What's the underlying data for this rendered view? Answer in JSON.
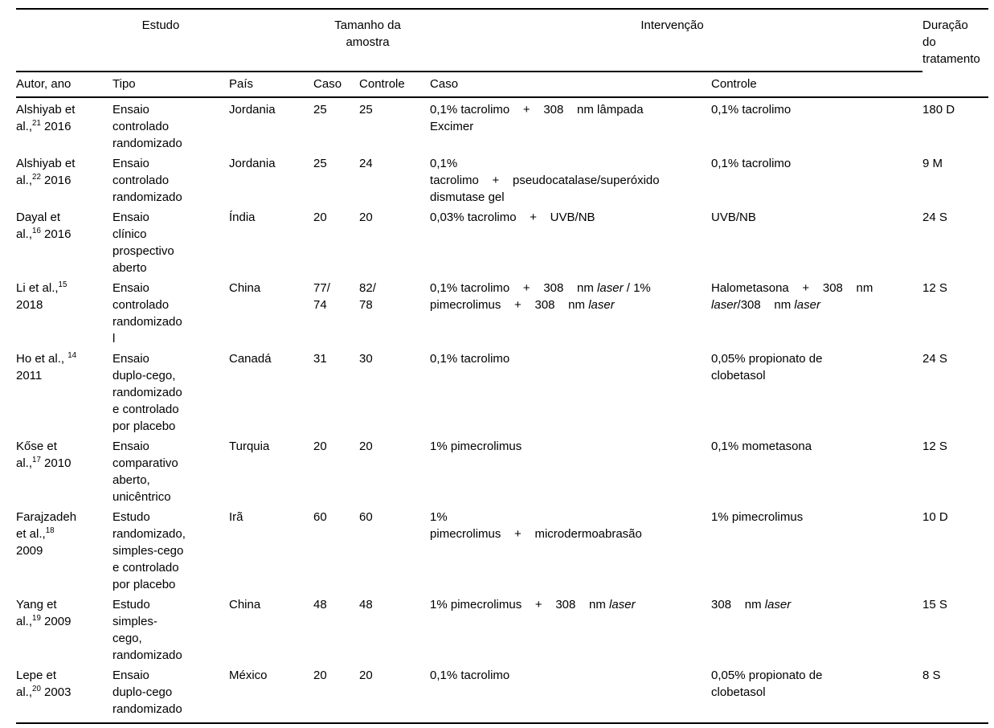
{
  "meta": {
    "background_color": "#ffffff",
    "text_color": "#000000",
    "rule_color": "#000000"
  },
  "table": {
    "groups": {
      "estudo": "Estudo",
      "amostra": "Tamanho da\namostra",
      "intervencao": "Intervenção",
      "duracao": "Duração\ndo\ntratamento"
    },
    "columns": {
      "autor": "Autor, ano",
      "tipo": "Tipo",
      "pais": "País",
      "caso_n": "Caso",
      "controle_n": "Controle",
      "caso_int": "Caso",
      "controle_int": "Controle"
    },
    "rows": [
      {
        "autor": "Alshiyab et\nal.,^21 2016",
        "tipo": "Ensaio\ncontrolado\nrandomizado",
        "pais": "Jordania",
        "caso_n": "25",
        "controle_n": "25",
        "caso_int": "0,1% tacrolimo    +    308    nm lâmpada\nExcimer",
        "controle_int": "0,1% tacrolimo",
        "duracao": "180 D"
      },
      {
        "autor": "Alshiyab et\nal.,^22 2016",
        "tipo": "Ensaio\ncontrolado\nrandomizado",
        "pais": "Jordania",
        "caso_n": "25",
        "controle_n": "24",
        "caso_int": "0,1%\ntacrolimo    +    pseudocatalase/superóxido\ndismutase gel",
        "controle_int": "0,1% tacrolimo",
        "duracao": "9 M"
      },
      {
        "autor": "Dayal et\nal.,^16 2016",
        "tipo": "Ensaio\nclínico\nprospectivo\naberto",
        "pais": "Índia",
        "caso_n": "20",
        "controle_n": "20",
        "caso_int": "0,03% tacrolimo    +    UVB/NB",
        "controle_int": "UVB/NB",
        "duracao": "24 S"
      },
      {
        "autor": "Li et al.,^15\n2018",
        "tipo": "Ensaio\ncontrolado\nrandomizado\nl",
        "pais": "China",
        "caso_n": "77/\n74",
        "controle_n": "82/\n78",
        "caso_int": "0,1% tacrolimo    +    308    nm *laser* / 1%\npimecrolimus    +    308    nm *laser*",
        "controle_int": "Halometasona    +    308    nm\n*laser*/308    nm *laser*",
        "duracao": "12 S"
      },
      {
        "autor": "Ho et al., ^14\n2011",
        "tipo": "Ensaio\nduplo-cego,\nrandomizado\ne controlado\npor placebo",
        "pais": "Canadá",
        "caso_n": "31",
        "controle_n": "30",
        "caso_int": "0,1% tacrolimo",
        "controle_int": "0,05% propionato de\nclobetasol",
        "duracao": "24 S"
      },
      {
        "autor": "Kőse et\nal.,^17 2010",
        "tipo": "Ensaio\ncomparativo\naberto,\nunicêntrico",
        "pais": "Turquia",
        "caso_n": "20",
        "controle_n": "20",
        "caso_int": "1% pimecrolimus",
        "controle_int": "0,1% mometasona",
        "duracao": "12 S"
      },
      {
        "autor": "Farajzadeh\net al.,^18\n2009",
        "tipo": "Estudo\nrandomizado,\nsimples-cego\ne controlado\npor placebo",
        "pais": "Irã",
        "caso_n": "60",
        "controle_n": "60",
        "caso_int": "1%\npimecrolimus    +    microdermoabrasão",
        "controle_int": "1% pimecrolimus",
        "duracao": "10 D"
      },
      {
        "autor": "Yang et\nal.,^19 2009",
        "tipo": "Estudo\nsimples-\ncego,\nrandomizado",
        "pais": "China",
        "caso_n": "48",
        "controle_n": "48",
        "caso_int": "1% pimecrolimus    +    308    nm *laser*",
        "controle_int": "308    nm *laser*",
        "duracao": "15 S"
      },
      {
        "autor": "Lepe et\nal.,^20 2003",
        "tipo": "Ensaio\nduplo-cego\nrandomizado",
        "pais": "México",
        "caso_n": "20",
        "controle_n": "20",
        "caso_int": "0,1% tacrolimo",
        "controle_int": "0,05% propionato de\nclobetasol",
        "duracao": "8 S"
      }
    ]
  }
}
